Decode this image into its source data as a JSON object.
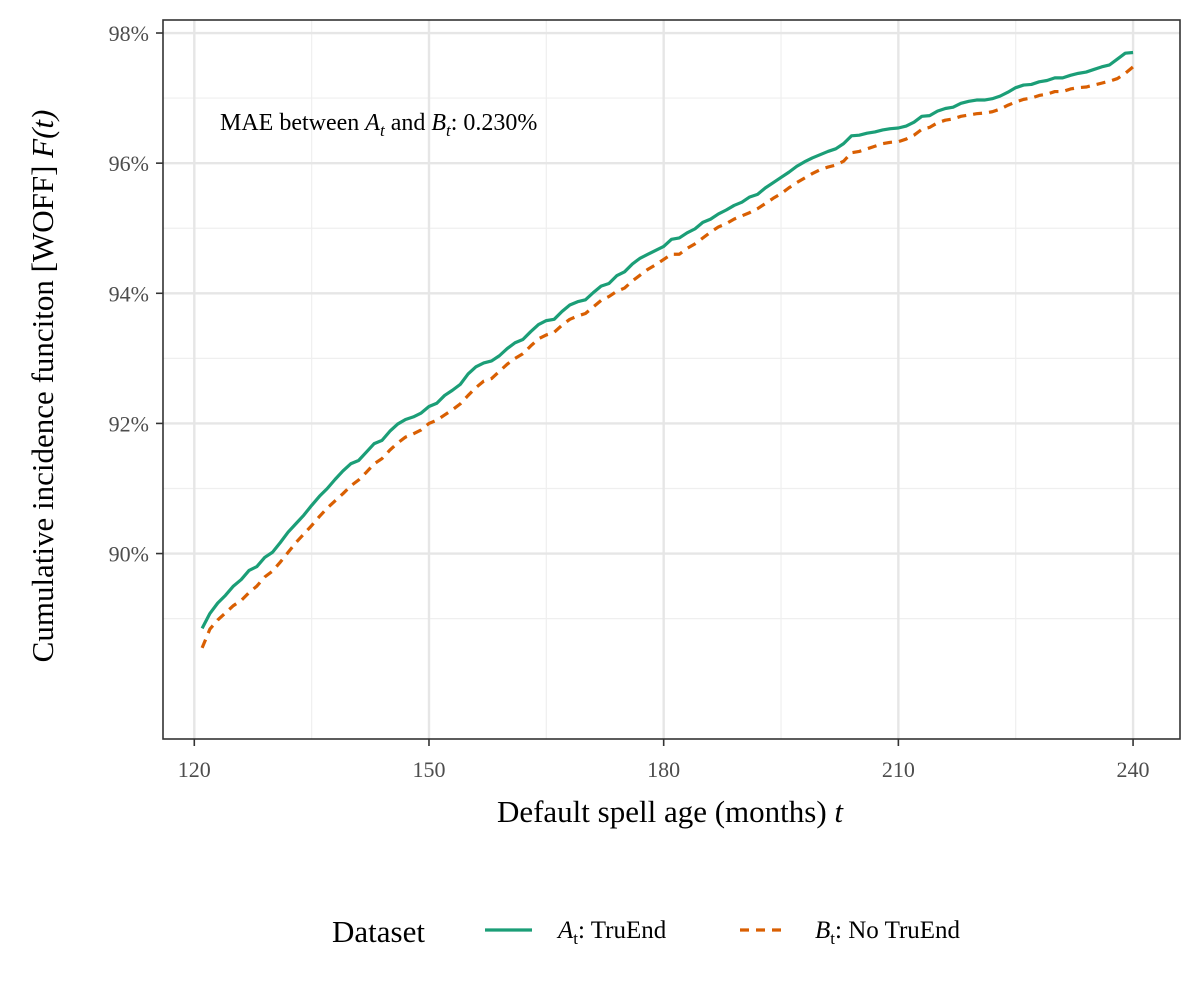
{
  "chart_data": {
    "type": "line",
    "ylabel": "Cumulative incidence funciton [WOFF]",
    "ylabel_math": "F(t)",
    "xlabel": "Default spell age (months)",
    "xlabel_math": "t",
    "xlim": [
      116,
      246
    ],
    "ylim": [
      87.15,
      98.2
    ],
    "x_ticks": [
      120,
      150,
      180,
      210,
      240
    ],
    "x_tick_labels": [
      "120",
      "150",
      "180",
      "210",
      "240"
    ],
    "y_ticks": [
      90,
      92,
      94,
      96,
      98
    ],
    "y_tick_labels": [
      "90%",
      "92%",
      "94%",
      "96%",
      "98%"
    ],
    "grid": true,
    "annotation": {
      "prefix": "MAE between",
      "a_symbol": "A",
      "a_sub": "t",
      "and": "and",
      "b_symbol": "B",
      "b_sub": "t",
      "suffix": ": 0.230%"
    },
    "legend": {
      "position": "bottom",
      "title": "Dataset",
      "items": [
        {
          "symbol": "A",
          "sub": "t",
          "label": ": TruEnd"
        },
        {
          "symbol": "B",
          "sub": "t",
          "label": ": No TruEnd"
        }
      ]
    },
    "series": [
      {
        "name": "A_t: TruEnd",
        "color": "#1b9e77",
        "dash": "solid",
        "x": [
          121,
          122,
          123,
          124,
          125,
          126,
          127,
          128,
          129,
          130,
          131,
          132,
          133,
          134,
          135,
          136,
          137,
          138,
          139,
          140,
          141,
          142,
          143,
          144,
          145,
          146,
          147,
          148,
          149,
          150,
          151,
          152,
          153,
          154,
          155,
          156,
          157,
          158,
          159,
          160,
          161,
          162,
          163,
          164,
          165,
          166,
          167,
          168,
          169,
          170,
          171,
          172,
          173,
          174,
          175,
          176,
          177,
          178,
          179,
          180,
          181,
          182,
          183,
          184,
          185,
          186,
          187,
          188,
          189,
          190,
          191,
          192,
          193,
          194,
          195,
          196,
          197,
          198,
          199,
          200,
          201,
          202,
          203,
          204,
          205,
          206,
          207,
          208,
          209,
          210,
          211,
          212,
          213,
          214,
          215,
          216,
          217,
          218,
          219,
          220,
          221,
          222,
          223,
          224,
          225,
          226,
          227,
          228,
          229,
          230,
          231,
          232,
          233,
          234,
          235,
          236,
          237,
          238,
          239,
          240
        ],
        "y": [
          88.85,
          89.08,
          89.24,
          89.36,
          89.5,
          89.6,
          89.74,
          89.8,
          89.94,
          90.02,
          90.17,
          90.33,
          90.46,
          90.59,
          90.74,
          90.88,
          91.0,
          91.14,
          91.27,
          91.38,
          91.43,
          91.56,
          91.69,
          91.74,
          91.88,
          91.99,
          92.06,
          92.1,
          92.16,
          92.26,
          92.31,
          92.43,
          92.51,
          92.6,
          92.76,
          92.87,
          92.93,
          92.96,
          93.04,
          93.15,
          93.24,
          93.29,
          93.41,
          93.52,
          93.58,
          93.6,
          93.72,
          93.82,
          93.87,
          93.9,
          94.01,
          94.11,
          94.15,
          94.27,
          94.33,
          94.45,
          94.54,
          94.6,
          94.66,
          94.72,
          94.83,
          94.85,
          94.93,
          94.99,
          95.09,
          95.14,
          95.22,
          95.28,
          95.35,
          95.4,
          95.48,
          95.52,
          95.62,
          95.7,
          95.78,
          95.86,
          95.95,
          96.02,
          96.08,
          96.13,
          96.18,
          96.22,
          96.3,
          96.42,
          96.43,
          96.46,
          96.48,
          96.51,
          96.53,
          96.54,
          96.57,
          96.63,
          96.72,
          96.73,
          96.8,
          96.84,
          96.86,
          96.92,
          96.95,
          96.97,
          96.97,
          96.99,
          97.03,
          97.09,
          97.16,
          97.2,
          97.21,
          97.25,
          97.27,
          97.31,
          97.31,
          97.35,
          97.38,
          97.4,
          97.44,
          97.48,
          97.51,
          97.6,
          97.69,
          97.7
        ]
      },
      {
        "name": "B_t: No TruEnd",
        "color": "#d95f02",
        "dash": "dashed",
        "x": [
          121,
          122,
          123,
          124,
          125,
          126,
          127,
          128,
          129,
          130,
          131,
          132,
          133,
          134,
          135,
          136,
          137,
          138,
          139,
          140,
          141,
          142,
          143,
          144,
          145,
          146,
          147,
          148,
          149,
          150,
          151,
          152,
          153,
          154,
          155,
          156,
          157,
          158,
          159,
          160,
          161,
          162,
          163,
          164,
          165,
          166,
          167,
          168,
          169,
          170,
          171,
          172,
          173,
          174,
          175,
          176,
          177,
          178,
          179,
          180,
          181,
          182,
          183,
          184,
          185,
          186,
          187,
          188,
          189,
          190,
          191,
          192,
          193,
          194,
          195,
          196,
          197,
          198,
          199,
          200,
          201,
          202,
          203,
          204,
          205,
          206,
          207,
          208,
          209,
          210,
          211,
          212,
          213,
          214,
          215,
          216,
          217,
          218,
          219,
          220,
          221,
          222,
          223,
          224,
          225,
          226,
          227,
          228,
          229,
          230,
          231,
          232,
          233,
          234,
          235,
          236,
          237,
          238,
          239,
          240
        ],
        "y": [
          88.55,
          88.84,
          88.98,
          89.09,
          89.2,
          89.28,
          89.4,
          89.5,
          89.64,
          89.73,
          89.87,
          90.02,
          90.17,
          90.3,
          90.43,
          90.57,
          90.7,
          90.81,
          90.92,
          91.04,
          91.13,
          91.25,
          91.38,
          91.46,
          91.59,
          91.7,
          91.79,
          91.84,
          91.9,
          92.0,
          92.05,
          92.13,
          92.21,
          92.3,
          92.43,
          92.55,
          92.65,
          92.69,
          92.8,
          92.91,
          93.0,
          93.07,
          93.19,
          93.3,
          93.36,
          93.4,
          93.51,
          93.6,
          93.65,
          93.69,
          93.79,
          93.89,
          93.95,
          94.03,
          94.08,
          94.19,
          94.28,
          94.37,
          94.44,
          94.52,
          94.6,
          94.6,
          94.69,
          94.76,
          94.85,
          94.94,
          95.02,
          95.07,
          95.14,
          95.19,
          95.24,
          95.3,
          95.38,
          95.46,
          95.53,
          95.62,
          95.7,
          95.77,
          95.84,
          95.9,
          95.94,
          95.97,
          96.03,
          96.16,
          96.18,
          96.22,
          96.26,
          96.3,
          96.32,
          96.33,
          96.37,
          96.43,
          96.52,
          96.55,
          96.62,
          96.66,
          96.68,
          96.72,
          96.74,
          96.76,
          96.77,
          96.79,
          96.83,
          96.89,
          96.94,
          96.98,
          97.0,
          97.04,
          97.06,
          97.1,
          97.1,
          97.14,
          97.16,
          97.17,
          97.2,
          97.23,
          97.26,
          97.3,
          97.38,
          97.48
        ]
      }
    ]
  }
}
